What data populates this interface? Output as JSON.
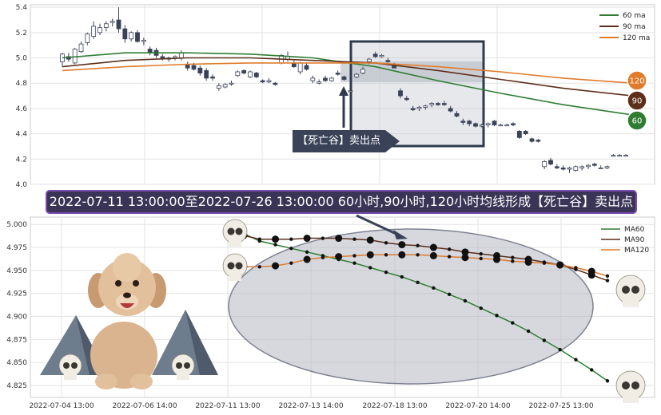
{
  "chart_data": [
    {
      "type": "candlestick",
      "title": "",
      "xlabel": "",
      "ylabel": "",
      "ylim": [
        4.0,
        5.42
      ],
      "y_ticks": [
        "5.4",
        "5.2",
        "5.0",
        "4.8",
        "4.6",
        "4.4",
        "4.2",
        "4.0"
      ],
      "grid": true,
      "legend_position": "top-right",
      "candles": [
        {
          "o": 4.97,
          "h": 5.04,
          "l": 4.93,
          "c": 5.03
        },
        {
          "o": 5.01,
          "h": 5.04,
          "l": 4.97,
          "c": 4.99
        },
        {
          "o": 4.96,
          "h": 5.08,
          "l": 4.95,
          "c": 5.07
        },
        {
          "o": 5.05,
          "h": 5.13,
          "l": 5.04,
          "c": 5.11
        },
        {
          "o": 5.12,
          "h": 5.2,
          "l": 5.1,
          "c": 5.19
        },
        {
          "o": 5.17,
          "h": 5.29,
          "l": 5.15,
          "c": 5.25
        },
        {
          "o": 5.2,
          "h": 5.27,
          "l": 5.18,
          "c": 5.24
        },
        {
          "o": 5.24,
          "h": 5.29,
          "l": 5.21,
          "c": 5.27
        },
        {
          "o": 5.28,
          "h": 5.31,
          "l": 5.25,
          "c": 5.29
        },
        {
          "o": 5.3,
          "h": 5.4,
          "l": 5.2,
          "c": 5.23
        },
        {
          "o": 5.23,
          "h": 5.26,
          "l": 5.12,
          "c": 5.15
        },
        {
          "o": 5.15,
          "h": 5.21,
          "l": 5.13,
          "c": 5.2
        },
        {
          "o": 5.2,
          "h": 5.22,
          "l": 5.12,
          "c": 5.13
        },
        {
          "o": 5.13,
          "h": 5.16,
          "l": 5.1,
          "c": 5.14
        },
        {
          "o": 5.07,
          "h": 5.09,
          "l": 5.02,
          "c": 5.04
        },
        {
          "o": 5.06,
          "h": 5.08,
          "l": 5.0,
          "c": 5.02
        },
        {
          "o": 5.01,
          "h": 5.03,
          "l": 4.98,
          "c": 5.0
        },
        {
          "o": 4.99,
          "h": 5.01,
          "l": 4.97,
          "c": 5.0
        },
        {
          "o": 5.0,
          "h": 5.02,
          "l": 4.98,
          "c": 5.01
        },
        {
          "o": 5.0,
          "h": 5.06,
          "l": 4.98,
          "c": 5.04
        },
        {
          "o": 4.95,
          "h": 4.97,
          "l": 4.9,
          "c": 4.92
        },
        {
          "o": 4.94,
          "h": 4.96,
          "l": 4.9,
          "c": 4.91
        },
        {
          "o": 4.92,
          "h": 4.94,
          "l": 4.86,
          "c": 4.88
        },
        {
          "o": 4.9,
          "h": 4.92,
          "l": 4.82,
          "c": 4.84
        },
        {
          "o": 4.85,
          "h": 4.87,
          "l": 4.82,
          "c": 4.84
        },
        {
          "o": 4.76,
          "h": 4.8,
          "l": 4.74,
          "c": 4.78
        },
        {
          "o": 4.77,
          "h": 4.8,
          "l": 4.76,
          "c": 4.79
        },
        {
          "o": 4.8,
          "h": 4.82,
          "l": 4.78,
          "c": 4.8
        },
        {
          "o": 4.86,
          "h": 4.9,
          "l": 4.85,
          "c": 4.89
        },
        {
          "o": 4.9,
          "h": 4.91,
          "l": 4.87,
          "c": 4.88
        },
        {
          "o": 4.85,
          "h": 4.9,
          "l": 4.84,
          "c": 4.89
        },
        {
          "o": 4.88,
          "h": 4.89,
          "l": 4.84,
          "c": 4.85
        },
        {
          "o": 4.82,
          "h": 4.83,
          "l": 4.8,
          "c": 4.81
        },
        {
          "o": 4.81,
          "h": 4.84,
          "l": 4.8,
          "c": 4.82
        },
        {
          "o": 4.8,
          "h": 4.81,
          "l": 4.78,
          "c": 4.79
        },
        {
          "o": 4.96,
          "h": 5.03,
          "l": 4.95,
          "c": 5.02
        },
        {
          "o": 4.99,
          "h": 5.05,
          "l": 4.97,
          "c": 5.01
        },
        {
          "o": 4.96,
          "h": 4.98,
          "l": 4.92,
          "c": 4.93
        },
        {
          "o": 4.89,
          "h": 4.97,
          "l": 4.87,
          "c": 4.96
        },
        {
          "o": 4.94,
          "h": 4.96,
          "l": 4.9,
          "c": 4.91
        },
        {
          "o": 4.82,
          "h": 4.86,
          "l": 4.8,
          "c": 4.84
        },
        {
          "o": 4.8,
          "h": 4.83,
          "l": 4.79,
          "c": 4.81
        },
        {
          "o": 4.84,
          "h": 4.86,
          "l": 4.81,
          "c": 4.82
        },
        {
          "o": 4.82,
          "h": 4.85,
          "l": 4.81,
          "c": 4.84
        },
        {
          "o": 4.88,
          "h": 4.9,
          "l": 4.86,
          "c": 4.87
        },
        {
          "o": 4.85,
          "h": 4.86,
          "l": 4.82,
          "c": 4.83
        },
        {
          "o": 4.74,
          "h": 4.76,
          "l": 4.73,
          "c": 4.74
        },
        {
          "o": 4.85,
          "h": 4.88,
          "l": 4.84,
          "c": 4.87
        },
        {
          "o": 4.88,
          "h": 4.93,
          "l": 4.87,
          "c": 4.91
        },
        {
          "o": 4.97,
          "h": 5.0,
          "l": 4.95,
          "c": 4.99
        },
        {
          "o": 5.03,
          "h": 5.05,
          "l": 5.0,
          "c": 5.01
        },
        {
          "o": 5.01,
          "h": 5.03,
          "l": 5.0,
          "c": 5.02
        },
        {
          "o": 4.98,
          "h": 5.0,
          "l": 4.96,
          "c": 4.97
        },
        {
          "o": 4.94,
          "h": 4.96,
          "l": 4.92,
          "c": 4.92
        },
        {
          "o": 4.74,
          "h": 4.76,
          "l": 4.68,
          "c": 4.7
        },
        {
          "o": 4.68,
          "h": 4.7,
          "l": 4.66,
          "c": 4.67
        },
        {
          "o": 4.6,
          "h": 4.62,
          "l": 4.58,
          "c": 4.59
        },
        {
          "o": 4.6,
          "h": 4.62,
          "l": 4.58,
          "c": 4.61
        },
        {
          "o": 4.61,
          "h": 4.63,
          "l": 4.59,
          "c": 4.62
        },
        {
          "o": 4.63,
          "h": 4.65,
          "l": 4.61,
          "c": 4.64
        },
        {
          "o": 4.64,
          "h": 4.65,
          "l": 4.62,
          "c": 4.63
        },
        {
          "o": 4.64,
          "h": 4.66,
          "l": 4.62,
          "c": 4.63
        },
        {
          "o": 4.6,
          "h": 4.62,
          "l": 4.57,
          "c": 4.58
        },
        {
          "o": 4.56,
          "h": 4.58,
          "l": 4.53,
          "c": 4.54
        },
        {
          "o": 4.5,
          "h": 4.52,
          "l": 4.47,
          "c": 4.49
        },
        {
          "o": 4.5,
          "h": 4.51,
          "l": 4.46,
          "c": 4.48
        },
        {
          "o": 4.48,
          "h": 4.49,
          "l": 4.45,
          "c": 4.46
        },
        {
          "o": 4.46,
          "h": 4.48,
          "l": 4.45,
          "c": 4.47
        },
        {
          "o": 4.47,
          "h": 4.49,
          "l": 4.45,
          "c": 4.48
        },
        {
          "o": 4.5,
          "h": 4.51,
          "l": 4.46,
          "c": 4.47
        },
        {
          "o": 4.47,
          "h": 4.48,
          "l": 4.46,
          "c": 4.47
        },
        {
          "o": 4.47,
          "h": 4.48,
          "l": 4.46,
          "c": 4.47
        },
        {
          "o": 4.48,
          "h": 4.49,
          "l": 4.46,
          "c": 4.47
        },
        {
          "o": 4.42,
          "h": 4.43,
          "l": 4.36,
          "c": 4.37
        },
        {
          "o": 4.42,
          "h": 4.43,
          "l": 4.39,
          "c": 4.4
        },
        {
          "o": 4.36,
          "h": 4.37,
          "l": 4.33,
          "c": 4.34
        },
        {
          "o": 4.35,
          "h": 4.36,
          "l": 4.33,
          "c": 4.34
        },
        {
          "o": 4.14,
          "h": 4.19,
          "l": 4.12,
          "c": 4.18
        },
        {
          "o": 4.19,
          "h": 4.21,
          "l": 4.15,
          "c": 4.16
        },
        {
          "o": 4.14,
          "h": 4.16,
          "l": 4.12,
          "c": 4.13
        },
        {
          "o": 4.13,
          "h": 4.15,
          "l": 4.11,
          "c": 4.12
        },
        {
          "o": 4.12,
          "h": 4.14,
          "l": 4.09,
          "c": 4.13
        },
        {
          "o": 4.11,
          "h": 4.15,
          "l": 4.1,
          "c": 4.14
        },
        {
          "o": 4.13,
          "h": 4.15,
          "l": 4.11,
          "c": 4.14
        },
        {
          "o": 4.14,
          "h": 4.16,
          "l": 4.12,
          "c": 4.15
        },
        {
          "o": 4.16,
          "h": 4.17,
          "l": 4.14,
          "c": 4.15
        },
        {
          "o": 4.13,
          "h": 4.15,
          "l": 4.12,
          "c": 4.13
        },
        {
          "o": 4.13,
          "h": 4.15,
          "l": 4.12,
          "c": 4.14
        },
        {
          "o": 4.23,
          "h": 4.24,
          "l": 4.22,
          "c": 4.23
        },
        {
          "o": 4.23,
          "h": 4.24,
          "l": 4.22,
          "c": 4.23
        },
        {
          "o": 4.23,
          "h": 4.24,
          "l": 4.22,
          "c": 4.23
        }
      ],
      "series": [
        {
          "name": "60 ma",
          "color": "#2e7d32",
          "x": [
            0,
            10,
            20,
            30,
            40,
            50,
            60,
            70,
            80,
            91
          ],
          "values": [
            5.0,
            5.04,
            5.04,
            5.03,
            5.0,
            4.93,
            4.82,
            4.72,
            4.63,
            4.55
          ]
        },
        {
          "name": "90 ma",
          "color": "#5d2f1a",
          "x": [
            0,
            10,
            20,
            30,
            40,
            50,
            60,
            70,
            80,
            91
          ],
          "values": [
            4.93,
            4.98,
            5.0,
            5.0,
            4.98,
            4.96,
            4.9,
            4.83,
            4.76,
            4.7
          ]
        },
        {
          "name": "120 ma",
          "color": "#e07b2a",
          "x": [
            0,
            10,
            20,
            30,
            40,
            50,
            60,
            70,
            80,
            91
          ],
          "values": [
            4.9,
            4.93,
            4.95,
            4.96,
            4.96,
            4.96,
            4.93,
            4.89,
            4.84,
            4.8
          ]
        }
      ],
      "end_labels": [
        "120",
        "90",
        "60"
      ],
      "annotation": "【死亡谷】卖出点"
    },
    {
      "type": "line",
      "title": "",
      "xlabel": "",
      "ylabel": "",
      "ylim": [
        4.812,
        5.008
      ],
      "y_ticks": [
        "5.000",
        "4.975",
        "4.950",
        "4.925",
        "4.900",
        "4.875",
        "4.850",
        "4.825"
      ],
      "x_tick_labels": [
        "2022-07-04 13:00",
        "2022-07-06 14:00",
        "2022-07-11 13:00",
        "2022-07-13 14:00",
        "2022-07-18 13:00",
        "2022-07-20 14:00",
        "2022-07-25 13:00"
      ],
      "grid": true,
      "legend_position": "top-right",
      "series": [
        {
          "name": "MA60",
          "color": "#2e7d32",
          "values": [
            4.99,
            4.982,
            4.978,
            4.974,
            4.97,
            4.966,
            4.962,
            4.958,
            4.953,
            4.948,
            4.943,
            4.937,
            4.931,
            4.924,
            4.917,
            4.909,
            4.901,
            4.893,
            4.884,
            4.874,
            4.864,
            4.853,
            4.842,
            4.83
          ]
        },
        {
          "name": "MA90",
          "color": "#5d2f1a",
          "values": [
            4.988,
            4.984,
            4.984,
            4.984,
            4.985,
            4.985,
            4.985,
            4.984,
            4.983,
            4.98,
            4.978,
            4.977,
            4.975,
            4.973,
            4.97,
            4.968,
            4.966,
            4.964,
            4.962,
            4.959,
            4.956,
            4.951,
            4.945,
            4.939
          ]
        },
        {
          "name": "MA120",
          "color": "#e07b2a",
          "values": [
            4.954,
            4.954,
            4.955,
            4.958,
            4.962,
            4.964,
            4.965,
            4.966,
            4.967,
            4.967,
            4.967,
            4.967,
            4.966,
            4.965,
            4.964,
            4.963,
            4.962,
            4.96,
            4.959,
            4.958,
            4.956,
            4.953,
            4.949,
            4.944
          ]
        }
      ]
    }
  ],
  "banner_text": "2022-07-11 13:00:00至2022-07-26 13:00:00 60小时,90小时,120小时均线形成【死亡谷】卖出点"
}
